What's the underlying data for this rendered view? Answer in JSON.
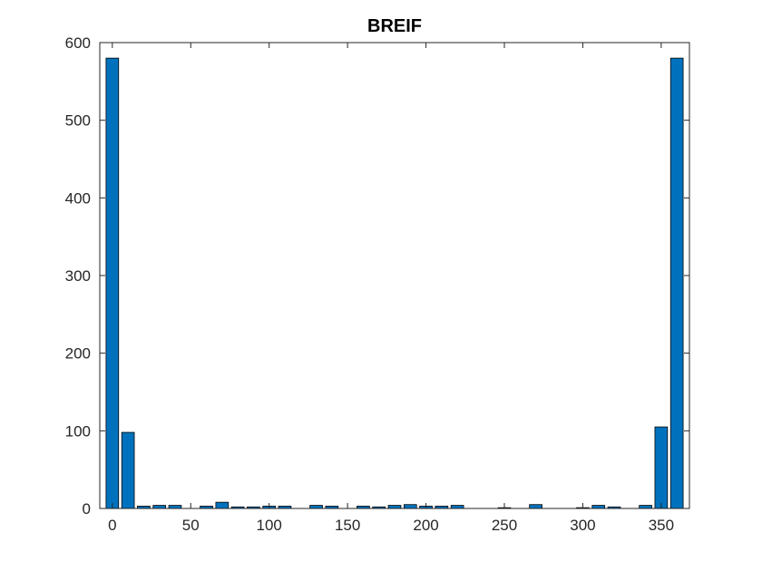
{
  "chart_data": {
    "type": "bar",
    "title": "BREIF",
    "xlabel": "",
    "ylabel": "",
    "x": [
      0,
      10,
      20,
      30,
      40,
      50,
      60,
      70,
      80,
      90,
      100,
      110,
      120,
      130,
      140,
      150,
      160,
      170,
      180,
      190,
      200,
      210,
      220,
      230,
      240,
      250,
      260,
      270,
      280,
      290,
      300,
      310,
      320,
      330,
      340,
      350,
      360
    ],
    "values": [
      580,
      98,
      3,
      4,
      4,
      0,
      3,
      8,
      2,
      2,
      3,
      3,
      0,
      4,
      3,
      0,
      3,
      2,
      4,
      5,
      3,
      3,
      4,
      0,
      0,
      1,
      0,
      5,
      0,
      0,
      1,
      4,
      2,
      0,
      4,
      105,
      580
    ],
    "xlim": [
      -8,
      368
    ],
    "ylim": [
      0,
      600
    ],
    "xticks": [
      0,
      50,
      100,
      150,
      200,
      250,
      300,
      350
    ],
    "yticks": [
      0,
      100,
      200,
      300,
      400,
      500,
      600
    ],
    "bar_color": "#0072BD",
    "edge_color": "#000000",
    "grid": false,
    "legend": "none"
  }
}
